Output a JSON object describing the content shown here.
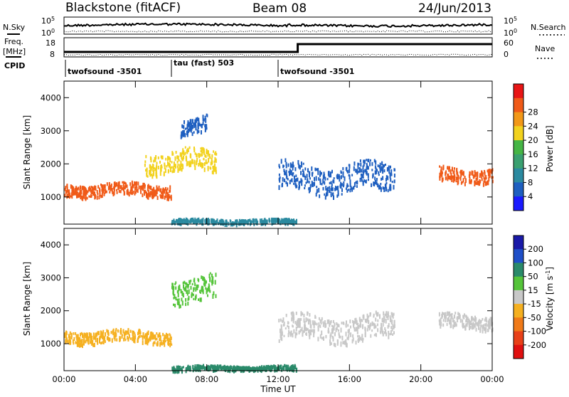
{
  "header": {
    "station": "Blackstone (fitACF)",
    "beam": "Beam 08",
    "date": "24/Jun/2013"
  },
  "top_panels": {
    "nsky_label": "N.Sky",
    "nsearch_label": "N.Search",
    "freq_label_line1": "Freq.",
    "freq_label_line2": "[MHz]",
    "nave_label": "Nave",
    "cpid_label": "CPID",
    "noise_ticks_left": [
      "10^5",
      "10^0"
    ],
    "noise_ticks_right": [
      "10^5",
      "10^0"
    ],
    "freq_ticks_left": [
      "18",
      "8"
    ],
    "freq_ticks_right": [
      "60",
      "0"
    ],
    "cpid_segments": [
      {
        "name": "twofsound -3501",
        "start_hour": 0.0,
        "end_hour": 6.0
      },
      {
        "name": "tau (fast) 503",
        "start_hour": 6.0,
        "end_hour": 11.85
      },
      {
        "name": "twofsound -3501",
        "start_hour": 11.85,
        "end_hour": 24.0
      }
    ]
  },
  "x_axis": {
    "label": "Time UT",
    "tick_labels": [
      "00:00",
      "04:00",
      "08:00",
      "12:00",
      "16:00",
      "20:00",
      "00:00"
    ],
    "range_hours": [
      0,
      24
    ]
  },
  "power_panel": {
    "ylabel": "Slant Range [km]",
    "yticks": [
      "1000",
      "2000",
      "3000",
      "4000"
    ],
    "colorbar_label": "Power [dB]",
    "colorbar_ticks": [
      "4",
      "8",
      "12",
      "16",
      "20",
      "24",
      "28"
    ],
    "colors": [
      "#1a1aff",
      "#1e5fc0",
      "#2b8aa0",
      "#3aa070",
      "#45b545",
      "#f2d21e",
      "#f29818",
      "#f05a18",
      "#e81515"
    ]
  },
  "velocity_panel": {
    "ylabel": "Slant Range [km]",
    "yticks": [
      "1000",
      "2000",
      "3000",
      "4000"
    ],
    "colorbar_label": "Velocity [m s^-1]",
    "colorbar_ticks": [
      "200",
      "100",
      "50",
      "15",
      "-15",
      "-50",
      "-100",
      "-200"
    ],
    "colors": [
      "#1a1aa8",
      "#1f4fc8",
      "#2a8a6a",
      "#55c43a",
      "#c8c8c8",
      "#f5b020",
      "#f07a18",
      "#e84018",
      "#e01010"
    ]
  },
  "chart_data": {
    "type": "heatmap",
    "title": "",
    "x_range_hours": [
      0,
      24
    ],
    "y_range_km": [
      180,
      4500
    ],
    "power_bands": [
      {
        "hour_start": 0.0,
        "hour_end": 6.0,
        "range_center_km": 1250,
        "range_width_km": 450,
        "power_db": 26
      },
      {
        "hour_start": 4.5,
        "hour_end": 8.5,
        "range_center_km": 2100,
        "range_width_km": 800,
        "power_db": 18
      },
      {
        "hour_start": 6.5,
        "hour_end": 8.0,
        "range_center_km": 3200,
        "range_width_km": 600,
        "power_db": 6
      },
      {
        "hour_start": 6.0,
        "hour_end": 13.0,
        "range_center_km": 300,
        "range_width_km": 150,
        "power_db": 10
      },
      {
        "hour_start": 12.0,
        "hour_end": 18.5,
        "range_center_km": 1600,
        "range_width_km": 1000,
        "power_db": 6
      },
      {
        "hour_start": 21.0,
        "hour_end": 24.0,
        "range_center_km": 1700,
        "range_width_km": 500,
        "power_db": 26
      }
    ],
    "velocity_bands": [
      {
        "hour_start": 0.0,
        "hour_end": 6.0,
        "range_center_km": 1250,
        "range_width_km": 450,
        "velocity_ms": -30
      },
      {
        "hour_start": 6.0,
        "hour_end": 8.5,
        "range_center_km": 2700,
        "range_width_km": 900,
        "velocity_ms": 30
      },
      {
        "hour_start": 6.0,
        "hour_end": 13.0,
        "range_center_km": 300,
        "range_width_km": 150,
        "velocity_ms": 60
      },
      {
        "hour_start": 12.0,
        "hour_end": 18.5,
        "range_center_km": 1500,
        "range_width_km": 900,
        "velocity_ms": 0
      },
      {
        "hour_start": 21.0,
        "hour_end": 24.0,
        "range_center_km": 1700,
        "range_width_km": 500,
        "velocity_ms": -5
      }
    ],
    "grid": false
  }
}
